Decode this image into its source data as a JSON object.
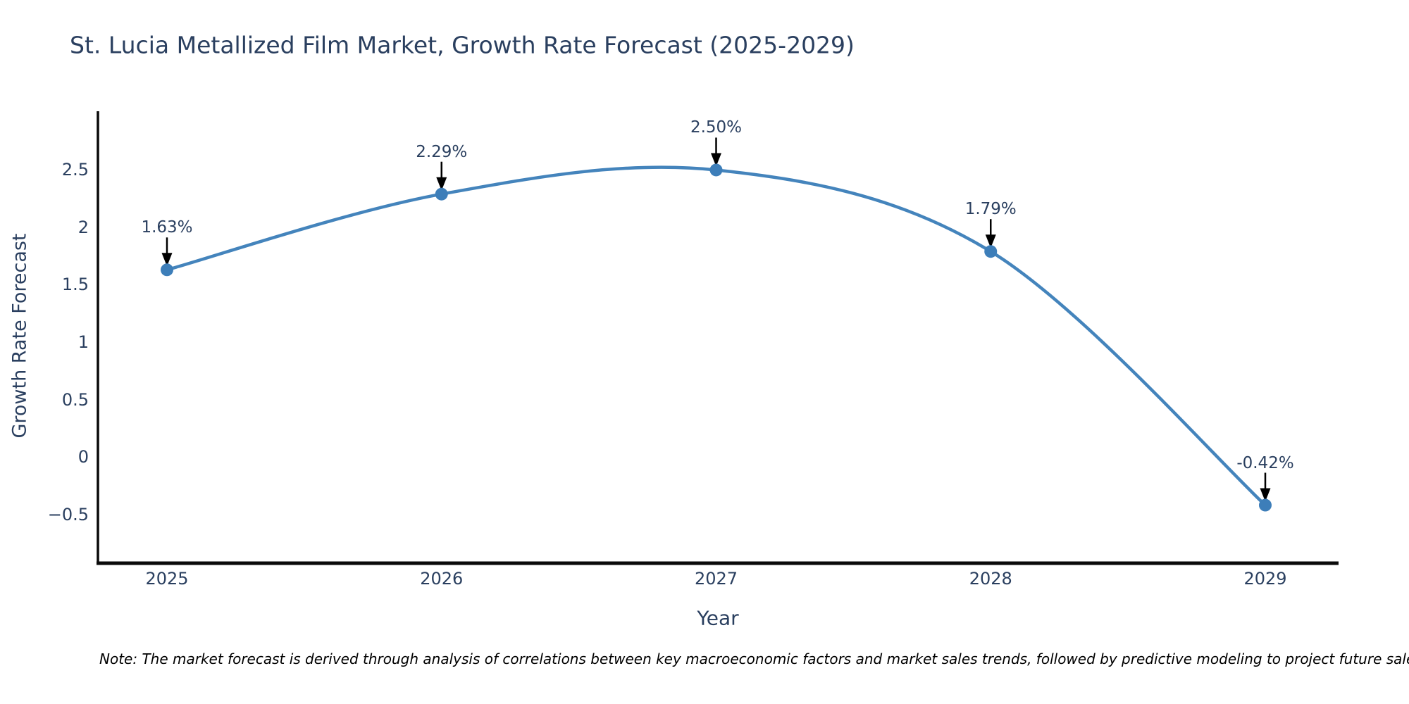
{
  "title": "St. Lucia Metallized Film Market, Growth Rate Forecast (2025-2029)",
  "note": "Note: The market forecast is derived through analysis of correlations between key macroeconomic factors and market sales trends, followed by predictive modeling to project future sales.",
  "chart_data": {
    "type": "line",
    "title": "St. Lucia Metallized Film Market, Growth Rate Forecast (2025-2029)",
    "xlabel": "Year",
    "ylabel": "Growth Rate Forecast",
    "x": [
      2025,
      2026,
      2027,
      2028,
      2029
    ],
    "series": [
      {
        "name": "Growth Rate Forecast",
        "values": [
          1.63,
          2.29,
          2.5,
          1.79,
          -0.42
        ]
      }
    ],
    "point_labels": [
      "1.63%",
      "2.29%",
      "2.50%",
      "1.79%",
      "-0.42%"
    ],
    "x_tick_labels": [
      "2025",
      "2026",
      "2027",
      "2028",
      "2029"
    ],
    "y_tick_values": [
      2.5,
      2,
      1.5,
      1,
      0.5,
      0,
      -0.5
    ],
    "y_tick_labels": [
      "2.5",
      "2",
      "1.5",
      "1",
      "0.5",
      "0",
      "−0.5"
    ],
    "ylim": [
      -0.926,
      3.012
    ],
    "line_shape": "spline",
    "grid": false,
    "legend_position": "none",
    "annotation_style": "label-above-with-down-arrow",
    "colors": {
      "line": "#4484bc",
      "marker": "#3d7eb9",
      "arrow": "#000000",
      "axis": "#0a0a0a",
      "heading_text": "#2a3f5f",
      "note_text": "#000000",
      "background": "#ffffff"
    }
  }
}
